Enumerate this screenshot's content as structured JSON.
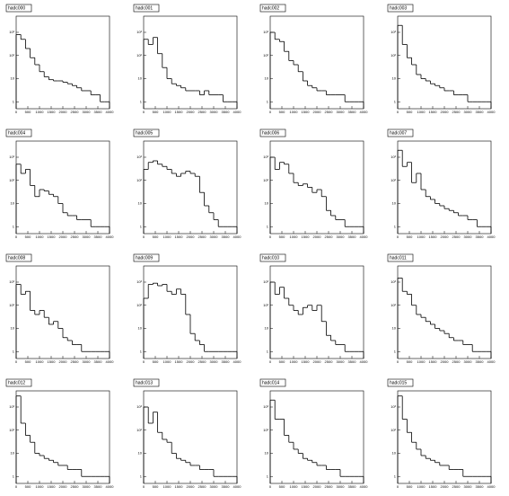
{
  "chart_data": [
    {
      "type": "histogram",
      "title": "hadc000",
      "bins": [
        0,
        200,
        400,
        600,
        800,
        1000,
        1200,
        1400,
        1600,
        1800,
        2000,
        2200,
        2400,
        2600,
        2800,
        3000,
        3200,
        3400,
        3600,
        3800,
        4000
      ],
      "values": [
        800,
        500,
        200,
        80,
        40,
        20,
        12,
        9,
        8,
        8,
        7,
        6,
        5,
        4,
        3,
        3,
        2,
        2,
        1,
        1
      ],
      "xlim": [
        0,
        4000
      ],
      "ylim": [
        0.5,
        5000
      ],
      "log_y": true,
      "xticks": [
        0,
        500,
        1000,
        1500,
        2000,
        2500,
        3000,
        3500,
        4000
      ],
      "yticks": [
        1,
        10,
        {
          "value": 100,
          "label": "10²"
        },
        {
          "value": 1000,
          "label": "10³"
        }
      ],
      "color": "#000000"
    },
    {
      "type": "histogram",
      "title": "hadc001",
      "bins": [
        0,
        200,
        400,
        600,
        800,
        1000,
        1200,
        1400,
        1600,
        1800,
        2000,
        2200,
        2400,
        2600,
        2800,
        3000,
        3200,
        3400,
        3600,
        3800,
        4000
      ],
      "values": [
        500,
        300,
        600,
        120,
        30,
        10,
        6,
        5,
        4,
        3,
        3,
        3,
        2,
        3,
        2,
        2,
        2,
        1,
        1,
        1
      ],
      "xlim": [
        0,
        4000
      ],
      "ylim": [
        0.5,
        5000
      ],
      "log_y": true,
      "xticks": [
        0,
        500,
        1000,
        1500,
        2000,
        2500,
        3000,
        3500,
        4000
      ],
      "yticks": [
        1,
        10,
        {
          "value": 100,
          "label": "10²"
        },
        {
          "value": 1000,
          "label": "10³"
        }
      ],
      "color": "#000000"
    },
    {
      "type": "histogram",
      "title": "hadc002",
      "bins": [
        0,
        200,
        400,
        600,
        800,
        1000,
        1200,
        1400,
        1600,
        1800,
        2000,
        2200,
        2400,
        2600,
        2800,
        3000,
        3200,
        3400,
        3600,
        3800,
        4000
      ],
      "values": [
        1000,
        500,
        400,
        150,
        60,
        40,
        20,
        8,
        5,
        4,
        3,
        3,
        2,
        2,
        2,
        2,
        1,
        1,
        1,
        1
      ],
      "xlim": [
        0,
        4000
      ],
      "ylim": [
        0.5,
        5000
      ],
      "log_y": true,
      "xticks": [
        0,
        500,
        1000,
        1500,
        2000,
        2500,
        3000,
        3500,
        4000
      ],
      "yticks": [
        1,
        10,
        {
          "value": 100,
          "label": "10²"
        },
        {
          "value": 1000,
          "label": "10³"
        }
      ],
      "color": "#000000"
    },
    {
      "type": "histogram",
      "title": "hadc003",
      "bins": [
        0,
        200,
        400,
        600,
        800,
        1000,
        1200,
        1400,
        1600,
        1800,
        2000,
        2200,
        2400,
        2600,
        2800,
        3000,
        3200,
        3400,
        3600,
        3800,
        4000
      ],
      "values": [
        2000,
        300,
        80,
        40,
        15,
        10,
        8,
        6,
        5,
        4,
        3,
        3,
        2,
        2,
        2,
        1,
        1,
        1,
        1,
        1
      ],
      "xlim": [
        0,
        4000
      ],
      "ylim": [
        0.5,
        5000
      ],
      "log_y": true,
      "xticks": [
        0,
        500,
        1000,
        1500,
        2000,
        2500,
        3000,
        3500,
        4000
      ],
      "yticks": [
        1,
        10,
        {
          "value": 100,
          "label": "10²"
        },
        {
          "value": 1000,
          "label": "10³"
        }
      ],
      "color": "#000000"
    },
    {
      "type": "histogram",
      "title": "hadc004",
      "bins": [
        0,
        200,
        400,
        600,
        800,
        1000,
        1200,
        1400,
        1600,
        1800,
        2000,
        2200,
        2400,
        2600,
        2800,
        3000,
        3200,
        3400,
        3600,
        3800,
        4000
      ],
      "values": [
        500,
        200,
        300,
        60,
        20,
        40,
        35,
        25,
        20,
        10,
        4,
        3,
        3,
        2,
        2,
        2,
        1,
        1,
        1,
        1
      ],
      "xlim": [
        0,
        4000
      ],
      "ylim": [
        0.5,
        5000
      ],
      "log_y": true,
      "xticks": [
        0,
        500,
        1000,
        1500,
        2000,
        2500,
        3000,
        3500,
        4000
      ],
      "yticks": [
        1,
        10,
        {
          "value": 100,
          "label": "10²"
        },
        {
          "value": 1000,
          "label": "10³"
        }
      ],
      "color": "#000000"
    },
    {
      "type": "histogram",
      "title": "hadc005",
      "bins": [
        0,
        200,
        400,
        600,
        800,
        1000,
        1200,
        1400,
        1600,
        1800,
        2000,
        2200,
        2400,
        2600,
        2800,
        3000,
        3200,
        3400,
        3600,
        3800,
        4000
      ],
      "values": [
        300,
        600,
        700,
        500,
        400,
        300,
        200,
        150,
        200,
        250,
        200,
        150,
        30,
        8,
        4,
        2,
        1,
        1,
        1,
        1
      ],
      "xlim": [
        0,
        4000
      ],
      "ylim": [
        0.5,
        5000
      ],
      "log_y": true,
      "xticks": [
        0,
        500,
        1000,
        1500,
        2000,
        2500,
        3000,
        3500,
        4000
      ],
      "yticks": [
        1,
        10,
        {
          "value": 100,
          "label": "10²"
        },
        {
          "value": 1000,
          "label": "10³"
        }
      ],
      "color": "#000000"
    },
    {
      "type": "histogram",
      "title": "hadc006",
      "bins": [
        0,
        200,
        400,
        600,
        800,
        1000,
        1200,
        1400,
        1600,
        1800,
        2000,
        2200,
        2400,
        2600,
        2800,
        3000,
        3200,
        3400,
        3600,
        3800,
        4000
      ],
      "values": [
        1000,
        300,
        600,
        500,
        200,
        80,
        60,
        70,
        50,
        30,
        40,
        20,
        5,
        3,
        2,
        2,
        1,
        1,
        1,
        1
      ],
      "xlim": [
        0,
        4000
      ],
      "ylim": [
        0.5,
        5000
      ],
      "log_y": true,
      "xticks": [
        0,
        500,
        1000,
        1500,
        2000,
        2500,
        3000,
        3500,
        4000
      ],
      "yticks": [
        1,
        10,
        {
          "value": 100,
          "label": "10²"
        },
        {
          "value": 1000,
          "label": "10³"
        }
      ],
      "color": "#000000"
    },
    {
      "type": "histogram",
      "title": "hadc007",
      "bins": [
        0,
        200,
        400,
        600,
        800,
        1000,
        1200,
        1400,
        1600,
        1800,
        2000,
        2200,
        2400,
        2600,
        2800,
        3000,
        3200,
        3400,
        3600,
        3800,
        4000
      ],
      "values": [
        2000,
        400,
        600,
        80,
        200,
        40,
        20,
        15,
        10,
        8,
        6,
        5,
        4,
        3,
        3,
        2,
        2,
        1,
        1,
        1
      ],
      "xlim": [
        0,
        4000
      ],
      "ylim": [
        0.5,
        5000
      ],
      "log_y": true,
      "xticks": [
        0,
        500,
        1000,
        1500,
        2000,
        2500,
        3000,
        3500,
        4000
      ],
      "yticks": [
        1,
        10,
        {
          "value": 100,
          "label": "10²"
        },
        {
          "value": 1000,
          "label": "10³"
        }
      ],
      "color": "#000000"
    },
    {
      "type": "histogram",
      "title": "hadc008",
      "bins": [
        0,
        200,
        400,
        600,
        800,
        1000,
        1200,
        1400,
        1600,
        1800,
        2000,
        2200,
        2400,
        2600,
        2800,
        3000,
        3200,
        3400,
        3600,
        3800,
        4000
      ],
      "values": [
        800,
        300,
        400,
        60,
        40,
        60,
        30,
        15,
        20,
        10,
        4,
        3,
        2,
        2,
        1,
        1,
        1,
        1,
        1,
        1
      ],
      "xlim": [
        0,
        4000
      ],
      "ylim": [
        0.5,
        5000
      ],
      "log_y": true,
      "xticks": [
        0,
        500,
        1000,
        1500,
        2000,
        2500,
        3000,
        3500,
        4000
      ],
      "yticks": [
        1,
        10,
        {
          "value": 100,
          "label": "10²"
        },
        {
          "value": 1000,
          "label": "10³"
        }
      ],
      "color": "#000000"
    },
    {
      "type": "histogram",
      "title": "hadc009",
      "bins": [
        0,
        200,
        400,
        600,
        800,
        1000,
        1200,
        1400,
        1600,
        1800,
        2000,
        2200,
        2400,
        2600,
        2800,
        3000,
        3200,
        3400,
        3600,
        3800,
        4000
      ],
      "values": [
        200,
        800,
        900,
        700,
        800,
        400,
        300,
        500,
        300,
        40,
        6,
        3,
        2,
        1,
        1,
        1,
        1,
        1,
        1,
        1
      ],
      "xlim": [
        0,
        4000
      ],
      "ylim": [
        0.5,
        5000
      ],
      "log_y": true,
      "xticks": [
        0,
        500,
        1000,
        1500,
        2000,
        2500,
        3000,
        3500,
        4000
      ],
      "yticks": [
        1,
        10,
        {
          "value": 100,
          "label": "10²"
        },
        {
          "value": 1000,
          "label": "10³"
        }
      ],
      "color": "#000000"
    },
    {
      "type": "histogram",
      "title": "hadc010",
      "bins": [
        0,
        200,
        400,
        600,
        800,
        1000,
        1200,
        1400,
        1600,
        1800,
        2000,
        2200,
        2400,
        2600,
        2800,
        3000,
        3200,
        3400,
        3600,
        3800,
        4000
      ],
      "values": [
        1000,
        300,
        600,
        200,
        100,
        60,
        40,
        80,
        100,
        60,
        100,
        20,
        5,
        3,
        2,
        2,
        1,
        1,
        1,
        1
      ],
      "xlim": [
        0,
        4000
      ],
      "ylim": [
        0.5,
        5000
      ],
      "log_y": true,
      "xticks": [
        0,
        500,
        1000,
        1500,
        2000,
        2500,
        3000,
        3500,
        4000
      ],
      "yticks": [
        1,
        10,
        {
          "value": 100,
          "label": "10²"
        },
        {
          "value": 1000,
          "label": "10³"
        }
      ],
      "color": "#000000"
    },
    {
      "type": "histogram",
      "title": "hadc011",
      "bins": [
        0,
        200,
        400,
        600,
        800,
        1000,
        1200,
        1400,
        1600,
        1800,
        2000,
        2200,
        2400,
        2600,
        2800,
        3000,
        3200,
        3400,
        3600,
        3800,
        4000
      ],
      "values": [
        1500,
        400,
        300,
        100,
        40,
        30,
        20,
        15,
        10,
        8,
        6,
        4,
        3,
        3,
        2,
        2,
        1,
        1,
        1,
        1
      ],
      "xlim": [
        0,
        4000
      ],
      "ylim": [
        0.5,
        5000
      ],
      "log_y": true,
      "xticks": [
        0,
        500,
        1000,
        1500,
        2000,
        2500,
        3000,
        3500,
        4000
      ],
      "yticks": [
        1,
        10,
        {
          "value": 100,
          "label": "10²"
        },
        {
          "value": 1000,
          "label": "10³"
        }
      ],
      "color": "#000000"
    },
    {
      "type": "histogram",
      "title": "hadc012",
      "bins": [
        0,
        200,
        400,
        600,
        800,
        1000,
        1200,
        1400,
        1600,
        1800,
        2000,
        2200,
        2400,
        2600,
        2800,
        3000,
        3200,
        3400,
        3600,
        3800,
        4000
      ],
      "values": [
        3000,
        200,
        60,
        30,
        10,
        8,
        6,
        5,
        4,
        3,
        3,
        2,
        2,
        2,
        1,
        1,
        1,
        1,
        1,
        1
      ],
      "xlim": [
        0,
        4000
      ],
      "ylim": [
        0.5,
        5000
      ],
      "log_y": true,
      "xticks": [
        0,
        500,
        1000,
        1500,
        2000,
        2500,
        3000,
        3500,
        4000
      ],
      "yticks": [
        1,
        10,
        {
          "value": 100,
          "label": "10²"
        },
        {
          "value": 1000,
          "label": "10³"
        }
      ],
      "color": "#000000"
    },
    {
      "type": "histogram",
      "title": "hadc013",
      "bins": [
        0,
        200,
        400,
        600,
        800,
        1000,
        1200,
        1400,
        1600,
        1800,
        2000,
        2200,
        2400,
        2600,
        2800,
        3000,
        3200,
        3400,
        3600,
        3800,
        4000
      ],
      "values": [
        1000,
        200,
        600,
        80,
        40,
        30,
        10,
        6,
        5,
        4,
        3,
        3,
        2,
        2,
        2,
        1,
        1,
        1,
        1,
        1
      ],
      "xlim": [
        0,
        4000
      ],
      "ylim": [
        0.5,
        5000
      ],
      "log_y": true,
      "xticks": [
        0,
        500,
        1000,
        1500,
        2000,
        2500,
        3000,
        3500,
        4000
      ],
      "yticks": [
        1,
        10,
        {
          "value": 100,
          "label": "10²"
        },
        {
          "value": 1000,
          "label": "10³"
        }
      ],
      "color": "#000000"
    },
    {
      "type": "histogram",
      "title": "hadc014",
      "bins": [
        0,
        200,
        400,
        600,
        800,
        1000,
        1200,
        1400,
        1600,
        1800,
        2000,
        2200,
        2400,
        2600,
        2800,
        3000,
        3200,
        3400,
        3600,
        3800,
        4000
      ],
      "values": [
        2000,
        300,
        300,
        60,
        30,
        15,
        10,
        6,
        5,
        4,
        3,
        3,
        2,
        2,
        2,
        1,
        1,
        1,
        1,
        1
      ],
      "xlim": [
        0,
        4000
      ],
      "ylim": [
        0.5,
        5000
      ],
      "log_y": true,
      "xticks": [
        0,
        500,
        1000,
        1500,
        2000,
        2500,
        3000,
        3500,
        4000
      ],
      "yticks": [
        1,
        10,
        {
          "value": 100,
          "label": "10²"
        },
        {
          "value": 1000,
          "label": "10³"
        }
      ],
      "color": "#000000"
    },
    {
      "type": "histogram",
      "title": "hadc015",
      "bins": [
        0,
        200,
        400,
        600,
        800,
        1000,
        1200,
        1400,
        1600,
        1800,
        2000,
        2200,
        2400,
        2600,
        2800,
        3000,
        3200,
        3400,
        3600,
        3800,
        4000
      ],
      "values": [
        3000,
        300,
        80,
        30,
        15,
        8,
        6,
        5,
        4,
        3,
        3,
        2,
        2,
        2,
        1,
        1,
        1,
        1,
        1,
        1
      ],
      "xlim": [
        0,
        4000
      ],
      "ylim": [
        0.5,
        5000
      ],
      "log_y": true,
      "xticks": [
        0,
        500,
        1000,
        1500,
        2000,
        2500,
        3000,
        3500,
        4000
      ],
      "yticks": [
        1,
        10,
        {
          "value": 100,
          "label": "10²"
        },
        {
          "value": 1000,
          "label": "10³"
        }
      ],
      "color": "#000000"
    }
  ]
}
